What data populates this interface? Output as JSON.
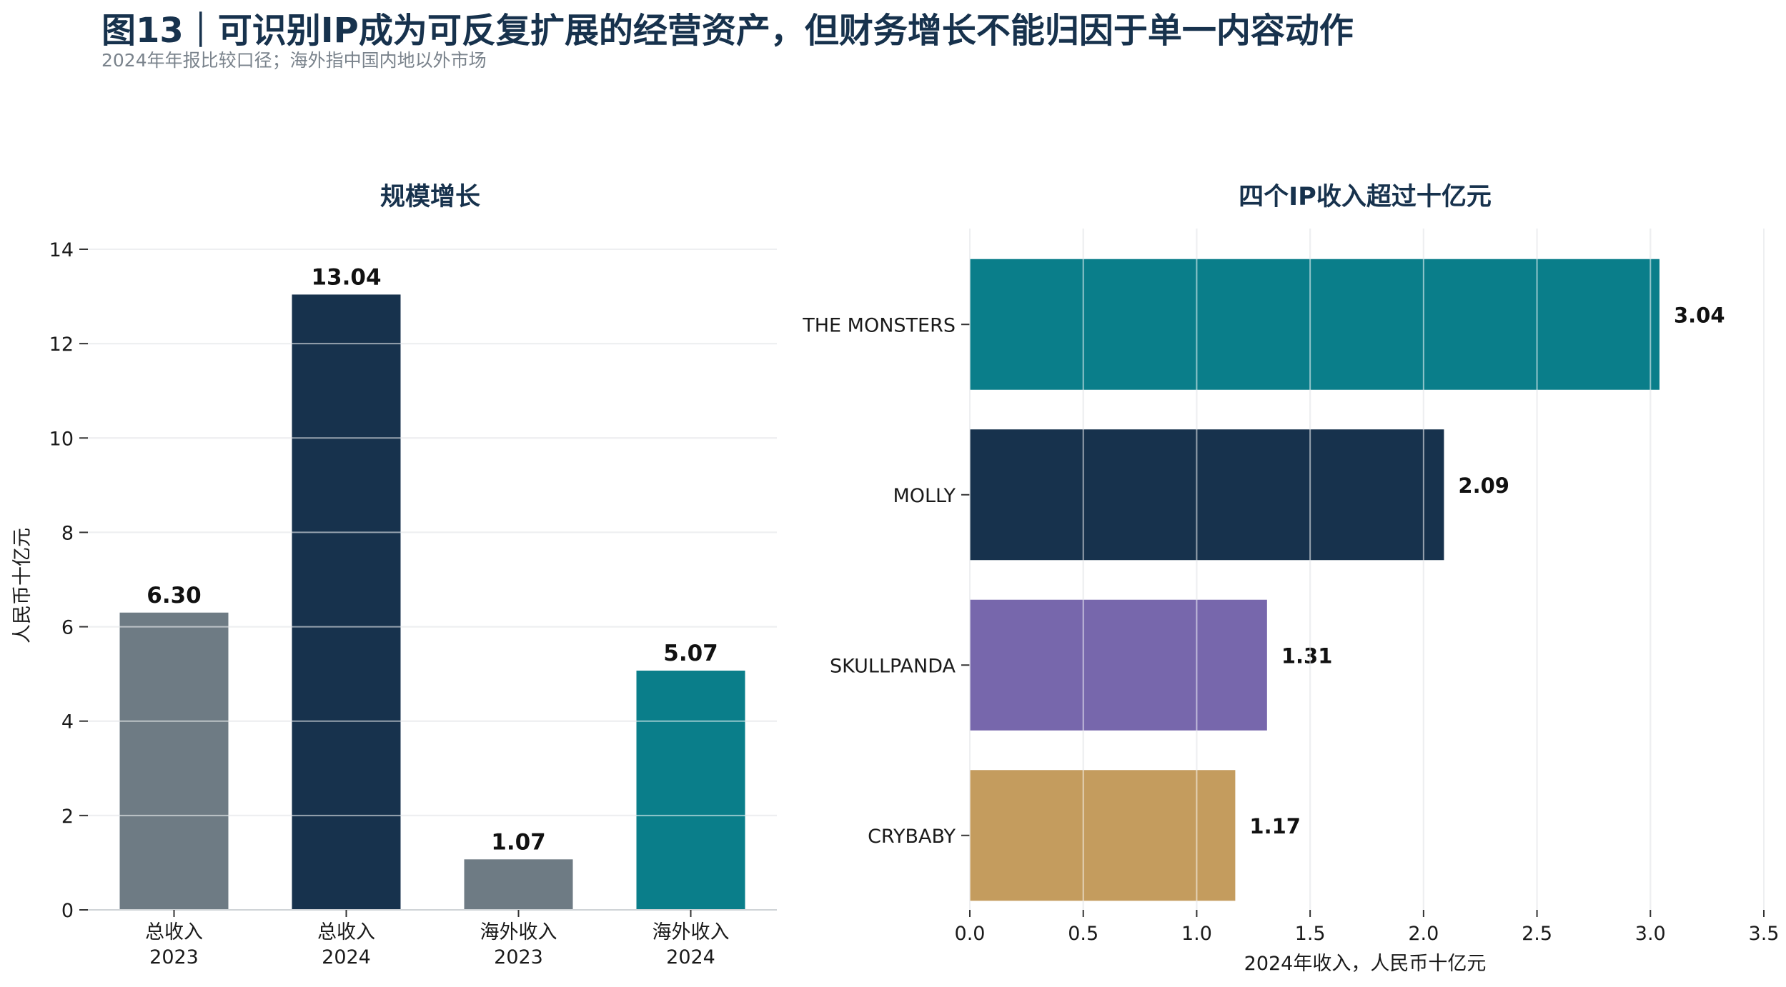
{
  "title": "图13｜可识别IP成为可反复扩展的经营资产，但财务增长不能归因于单一内容动作",
  "subtitle": "2024年年报比较口径；海外指中国内地以外市场",
  "colors": {
    "title": "#17324d",
    "subtitle": "#7a838c",
    "navy": "#17324d",
    "gray": "#6e7b84",
    "teal": "#0a7e8a",
    "purple": "#7767ac",
    "gold": "#c49c5e"
  },
  "chart_data": [
    {
      "type": "bar",
      "title": "规模增长",
      "ylabel": "人民币十亿元",
      "xlabel": "",
      "ylim": [
        0,
        14
      ],
      "yticks": [
        "0",
        "2",
        "4",
        "6",
        "8",
        "10",
        "12",
        "14"
      ],
      "grid": "horizontal",
      "categories": [
        {
          "line1": "总收入",
          "line2": "2023"
        },
        {
          "line1": "总收入",
          "line2": "2024"
        },
        {
          "line1": "海外收入",
          "line2": "2023"
        },
        {
          "line1": "海外收入",
          "line2": "2024"
        }
      ],
      "values": [
        6.3,
        13.04,
        1.07,
        5.07
      ],
      "value_labels": [
        "6.30",
        "13.04",
        "1.07",
        "5.07"
      ],
      "bar_colors": [
        "#6e7b84",
        "#17324d",
        "#6e7b84",
        "#0a7e8a"
      ]
    },
    {
      "type": "bar",
      "orientation": "horizontal",
      "title": "四个IP收入超过十亿元",
      "xlabel": "2024年收入，人民币十亿元",
      "ylabel": "",
      "xlim": [
        0,
        3.5
      ],
      "xticks": [
        "0.0",
        "0.5",
        "1.0",
        "1.5",
        "2.0",
        "2.5",
        "3.0",
        "3.5"
      ],
      "grid": "vertical",
      "categories": [
        "THE MONSTERS",
        "MOLLY",
        "SKULLPANDA",
        "CRYBABY"
      ],
      "values": [
        3.04,
        2.09,
        1.31,
        1.17
      ],
      "value_labels": [
        "3.04",
        "2.09",
        "1.31",
        "1.17"
      ],
      "bar_colors": [
        "#0a7e8a",
        "#17324d",
        "#7767ac",
        "#c49c5e"
      ]
    }
  ]
}
